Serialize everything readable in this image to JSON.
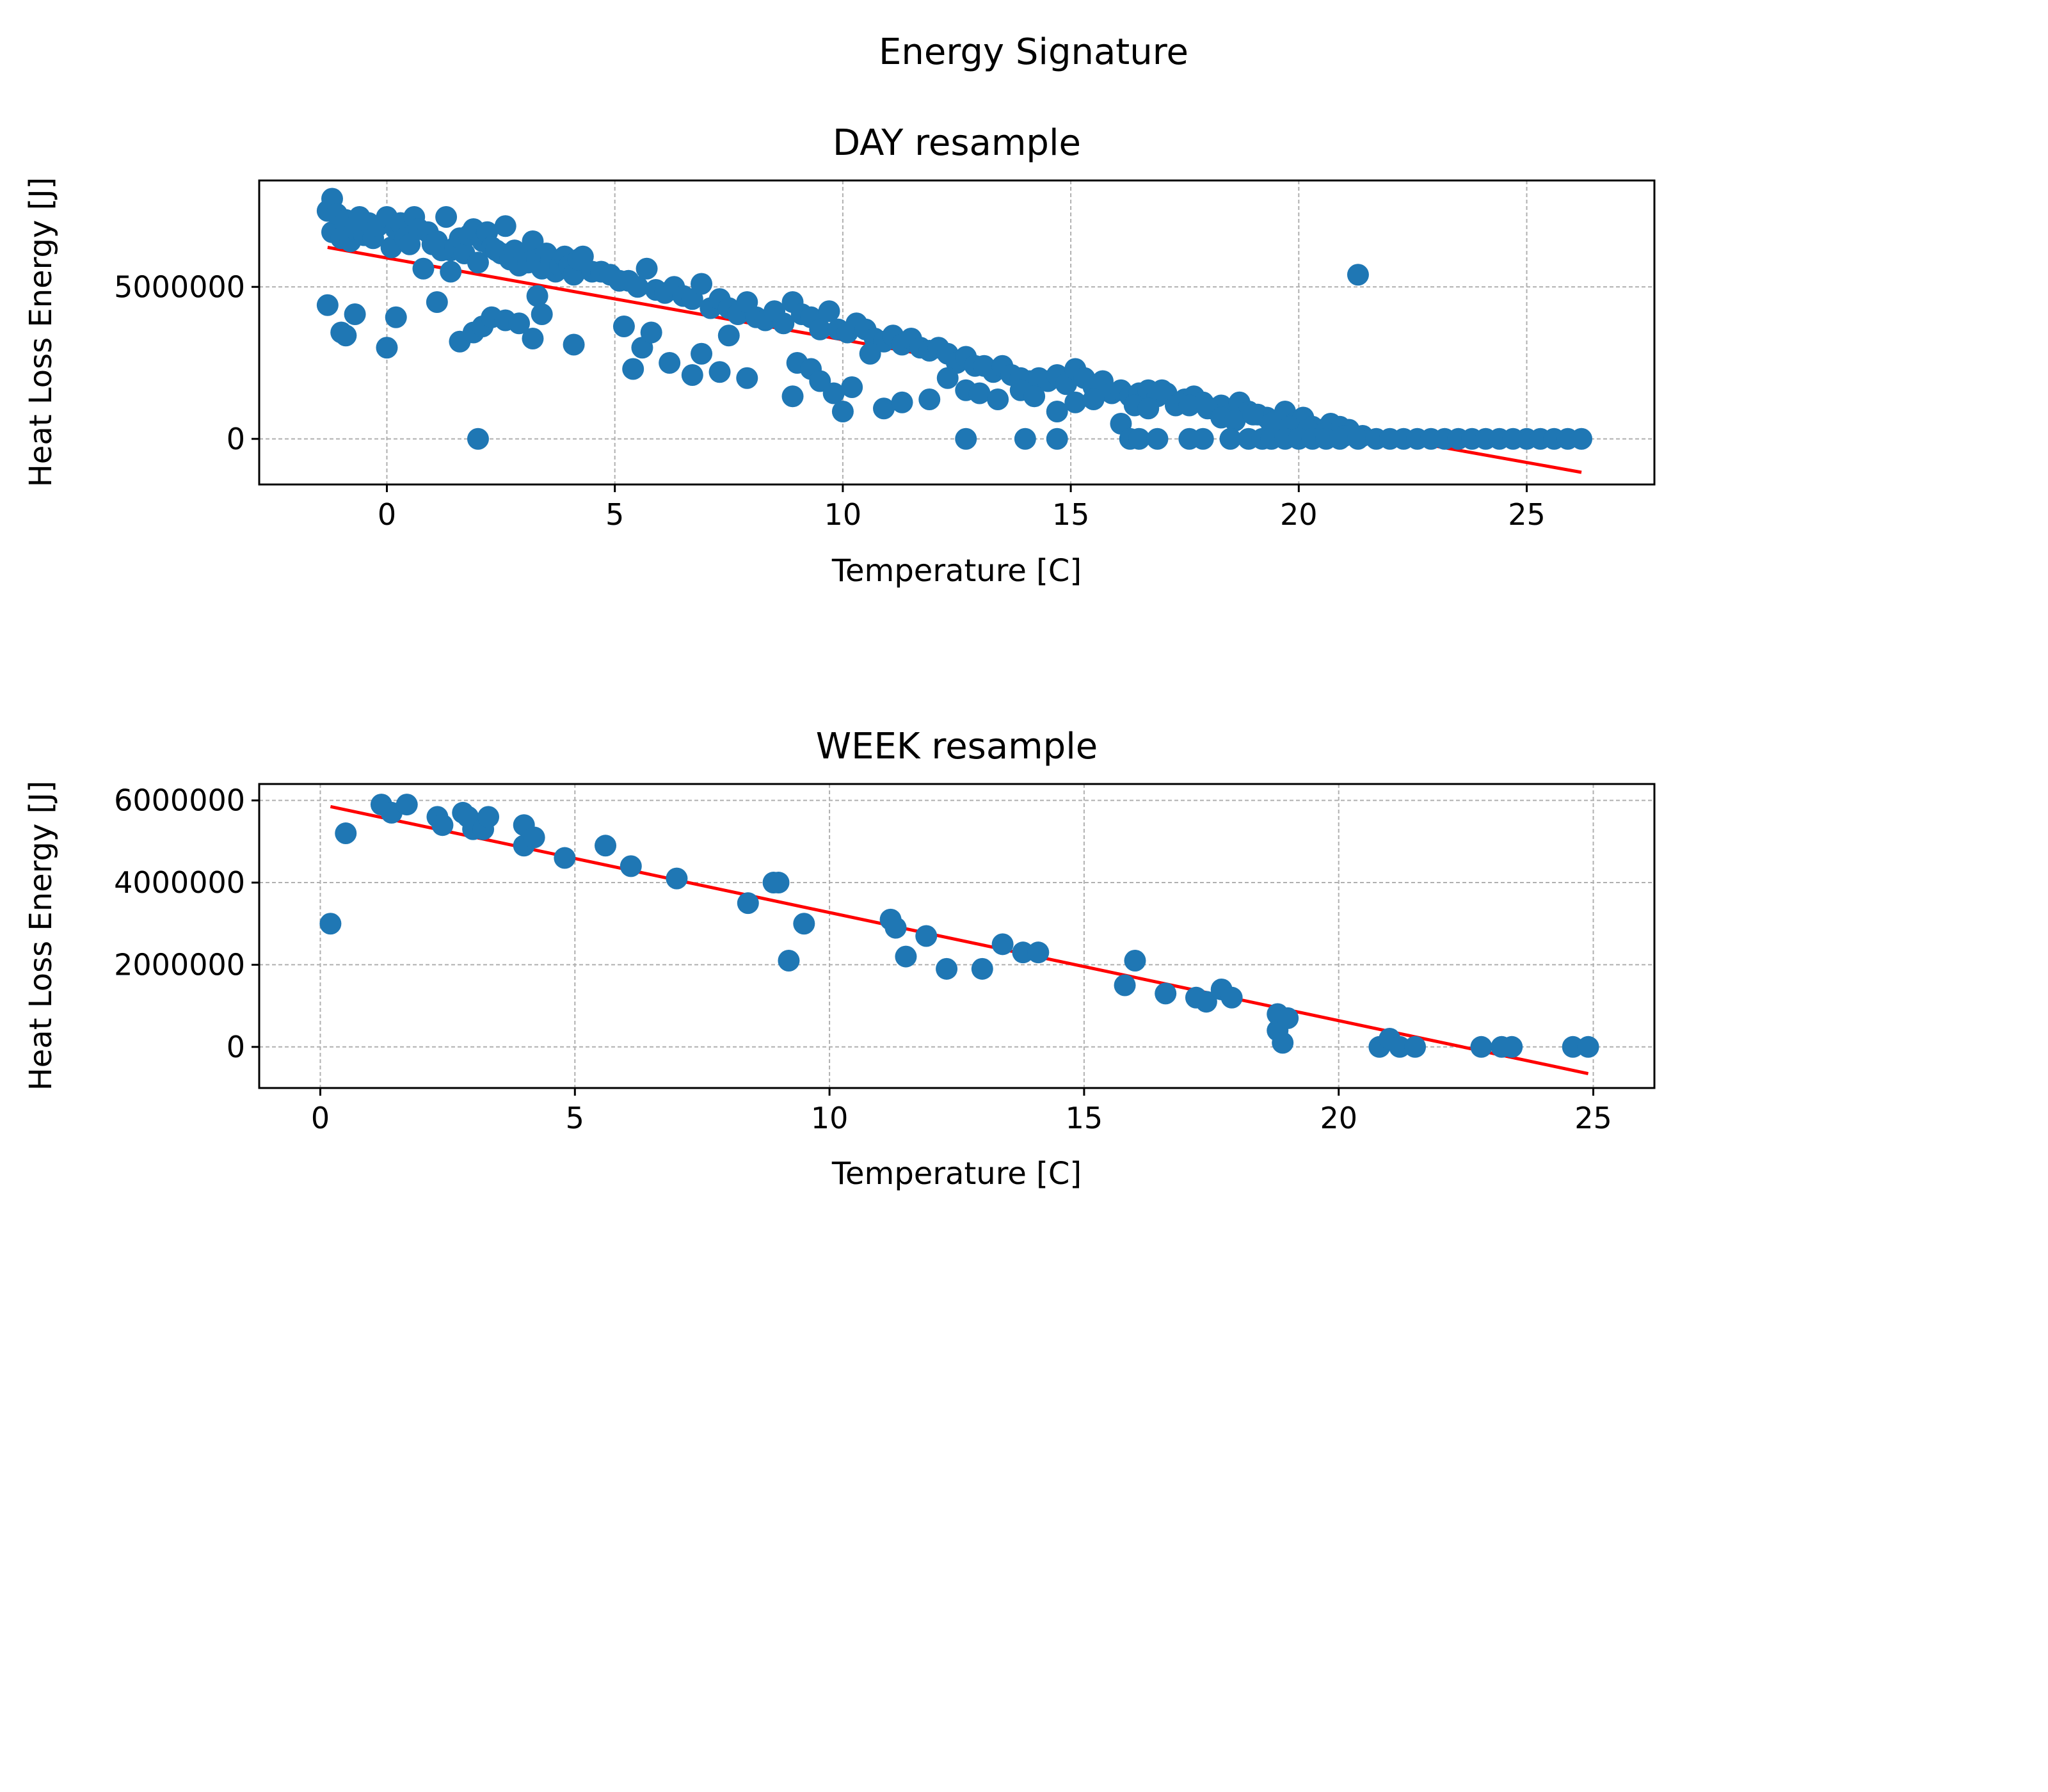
{
  "figure": {
    "suptitle": "Energy Signature"
  },
  "colors": {
    "points": "#1f77b4",
    "fit_line": "#ff0000",
    "grid": "#b0b0b0"
  },
  "chart_data": [
    {
      "type": "scatter",
      "title": "DAY resample",
      "xlabel": "Temperature [C]",
      "ylabel": "Heat Loss Energy [J]",
      "xlim": [
        -2.8,
        27.8
      ],
      "ylim": [
        -1500000,
        8500000
      ],
      "xticks": [
        0,
        5,
        10,
        15,
        20,
        25
      ],
      "yticks": [
        0,
        5000000
      ],
      "ytick_labels": [
        "0",
        "5000000"
      ],
      "grid": true,
      "series": [
        {
          "kind": "points",
          "x": [
            -1.3,
            -1.2,
            -1.2,
            -1.1,
            -1,
            -0.9,
            -0.8,
            -0.7,
            -0.6,
            -0.5,
            -0.4,
            -0.3,
            -0.2,
            0,
            0.1,
            0.2,
            0.3,
            0.4,
            0.5,
            0.6,
            0.7,
            0.8,
            0.9,
            1,
            1.1,
            1.2,
            1.3,
            1.4,
            1.5,
            1.6,
            1.7,
            1.8,
            1.9,
            2,
            2.1,
            2.2,
            2.3,
            2.4,
            2.5,
            2.6,
            2.7,
            2.8,
            2.9,
            3,
            3.1,
            3.2,
            3.3,
            3.4,
            3.5,
            3.6,
            3.7,
            3.8,
            3.9,
            4,
            4.1,
            4.2,
            4.3,
            4.5,
            4.7,
            4.9,
            5.1,
            5.3,
            5.5,
            5.7,
            5.9,
            6.1,
            6.3,
            6.5,
            6.7,
            6.9,
            7.1,
            7.3,
            7.5,
            7.7,
            7.9,
            8.1,
            8.3,
            8.5,
            8.7,
            8.9,
            9.1,
            9.3,
            9.5,
            9.7,
            9.9,
            10.1,
            10.3,
            10.5,
            10.7,
            10.9,
            11.1,
            11.3,
            11.5,
            11.7,
            11.9,
            12.1,
            12.3,
            12.5,
            12.7,
            12.9,
            13.1,
            13.3,
            13.5,
            13.7,
            13.9,
            14.1,
            14.3,
            14.5,
            14.7,
            14.9,
            15.1,
            15.3,
            15.5,
            15.7,
            15.9,
            16.1,
            16.3,
            16.5,
            16.7,
            16.9,
            17.1,
            17.3,
            17.5,
            17.7,
            17.9,
            18.1,
            18.3,
            18.5,
            18.7,
            18.9,
            19.1,
            19.3,
            19.5,
            19.7,
            19.9,
            20.1,
            20.3,
            20.5,
            20.7,
            20.9,
            21.1,
            21.3,
            -1.3,
            -1,
            -0.9,
            -0.7,
            0,
            0.2,
            1.1,
            1.4,
            1.6,
            1.9,
            2.1,
            2.3,
            2.6,
            2.9,
            3.2,
            3.3,
            3.4,
            4.1,
            5.2,
            5.4,
            5.6,
            5.8,
            6.2,
            6.7,
            6.9,
            7.3,
            7.5,
            7.9,
            8.9,
            9.0,
            9.3,
            9.5,
            9.8,
            10.0,
            10.2,
            10.6,
            10.9,
            11.3,
            11.9,
            12.3,
            12.7,
            13.0,
            13.4,
            13.9,
            14.2,
            14.7,
            15.1,
            15.5,
            16.1,
            16.4,
            16.7,
            17.0,
            17.6,
            18.0,
            18.3,
            18.6,
            19.0,
            19.4,
            19.8,
            20.2,
            20.6,
            21.0,
            21.4,
            2.0,
            12.7,
            14.0,
            14.7,
            16.3,
            16.5,
            16.9,
            17.6,
            17.9,
            18.5,
            18.9,
            19.2,
            19.4,
            19.7,
            20.0,
            20.3,
            20.6,
            20.9,
            21.3,
            21.7,
            22.0,
            22.3,
            22.6,
            22.9,
            23.2,
            23.5,
            23.8,
            24.1,
            24.4,
            24.7,
            25.0,
            25.3,
            25.6,
            25.9,
            26.2
          ],
          "y": [
            7500000,
            7900000,
            6800000,
            7400000,
            6600000,
            7200000,
            6500000,
            6900000,
            7300000,
            6700000,
            7100000,
            6600000,
            7000000,
            7300000,
            6300000,
            6900000,
            7100000,
            6600000,
            6400000,
            7300000,
            6900000,
            5600000,
            6800000,
            6400000,
            6500000,
            6200000,
            7300000,
            6200000,
            6300000,
            6600000,
            6100000,
            6700000,
            6900000,
            5800000,
            6500000,
            6800000,
            6300000,
            6200000,
            6100000,
            7000000,
            5900000,
            6200000,
            5700000,
            6100000,
            5800000,
            6500000,
            5900000,
            5600000,
            6100000,
            5900000,
            5500000,
            5700000,
            6000000,
            5700000,
            5400000,
            5900000,
            6000000,
            5500000,
            5500000,
            5400000,
            5200000,
            5200000,
            5000000,
            5600000,
            4900000,
            4800000,
            5000000,
            4700000,
            4600000,
            5100000,
            4300000,
            4600000,
            4300000,
            4100000,
            4500000,
            4000000,
            3900000,
            4200000,
            3800000,
            4500000,
            4100000,
            4000000,
            3600000,
            4200000,
            3600000,
            3500000,
            3800000,
            3600000,
            3300000,
            3200000,
            3400000,
            3100000,
            3300000,
            3000000,
            2900000,
            3000000,
            2800000,
            2500000,
            2700000,
            2400000,
            2400000,
            2200000,
            2400000,
            2100000,
            2000000,
            1900000,
            2000000,
            1900000,
            2100000,
            1800000,
            2300000,
            2000000,
            1700000,
            1900000,
            1500000,
            1600000,
            1400000,
            1500000,
            1600000,
            1400000,
            1500000,
            1100000,
            1300000,
            1400000,
            1200000,
            1000000,
            1100000,
            800000,
            1200000,
            900000,
            800000,
            700000,
            600000,
            900000,
            500000,
            700000,
            400000,
            300000,
            500000,
            400000,
            300000,
            5400000,
            4400000,
            3500000,
            3400000,
            4100000,
            3000000,
            4000000,
            4500000,
            5500000,
            3200000,
            3500000,
            3700000,
            4000000,
            3900000,
            3800000,
            3300000,
            4700000,
            4100000,
            3100000,
            3700000,
            2300000,
            3000000,
            3500000,
            2500000,
            2100000,
            2800000,
            2200000,
            3400000,
            2000000,
            1400000,
            2500000,
            2300000,
            1900000,
            1500000,
            900000,
            1700000,
            2800000,
            1000000,
            1200000,
            1300000,
            2000000,
            1600000,
            1500000,
            1300000,
            1600000,
            1400000,
            900000,
            1200000,
            1300000,
            500000,
            1100000,
            1000000,
            1600000,
            1100000,
            1000000,
            700000,
            600000,
            800000,
            500000,
            400000,
            300000,
            200000,
            100000,
            100000,
            0,
            0,
            0,
            0,
            0,
            0,
            0,
            0,
            0,
            0,
            0,
            0,
            0,
            0,
            0,
            0,
            0,
            0,
            0,
            0,
            0,
            0,
            0,
            0,
            0,
            0,
            0,
            0,
            0,
            0,
            0,
            0,
            0,
            0,
            0
          ]
        },
        {
          "kind": "fit_line",
          "x": [
            -1.3,
            26.2
          ],
          "y": [
            6300000,
            -1100000
          ]
        }
      ]
    },
    {
      "type": "scatter",
      "title": "WEEK resample",
      "xlabel": "Temperature [C]",
      "ylabel": "Heat Loss Energy [J]",
      "xlim": [
        -1.2,
        26.2
      ],
      "ylim": [
        -1000000,
        6400000
      ],
      "xticks": [
        0,
        5,
        10,
        15,
        20,
        25
      ],
      "yticks": [
        0,
        2000000,
        4000000,
        6000000
      ],
      "ytick_labels": [
        "0",
        "2000000",
        "4000000",
        "6000000"
      ],
      "grid": true,
      "series": [
        {
          "kind": "points",
          "x": [
            0.2,
            0.5,
            1.2,
            1.4,
            1.7,
            2.3,
            2.4,
            2.8,
            2.9,
            3.0,
            3.2,
            3.3,
            4.0,
            4.0,
            4.2,
            4.8,
            5.6,
            6.1,
            7.0,
            8.4,
            8.9,
            9.0,
            9.2,
            9.5,
            11.2,
            11.3,
            11.5,
            11.9,
            12.3,
            13.0,
            13.4,
            13.8,
            14.1,
            15.8,
            16.0,
            16.6,
            17.2,
            17.4,
            17.7,
            17.9,
            18.8,
            18.8,
            18.9,
            19.0,
            20.8,
            21.0,
            21.2,
            21.5,
            22.8,
            23.2,
            23.4,
            24.6,
            24.9
          ],
          "y": [
            3000000,
            5200000,
            5900000,
            5700000,
            5900000,
            5600000,
            5400000,
            5700000,
            5600000,
            5300000,
            5300000,
            5600000,
            5400000,
            4900000,
            5100000,
            4600000,
            4900000,
            4400000,
            4100000,
            3500000,
            4000000,
            4000000,
            2100000,
            3000000,
            3100000,
            2900000,
            2200000,
            2700000,
            1900000,
            1900000,
            2500000,
            2300000,
            2300000,
            1500000,
            2100000,
            1300000,
            1200000,
            1100000,
            1400000,
            1200000,
            800000,
            400000,
            100000,
            700000,
            0,
            200000,
            0,
            0,
            0,
            0,
            0,
            0,
            0
          ]
        },
        {
          "kind": "fit_line",
          "x": [
            0.2,
            24.9
          ],
          "y": [
            5850000,
            -650000
          ]
        }
      ]
    }
  ]
}
